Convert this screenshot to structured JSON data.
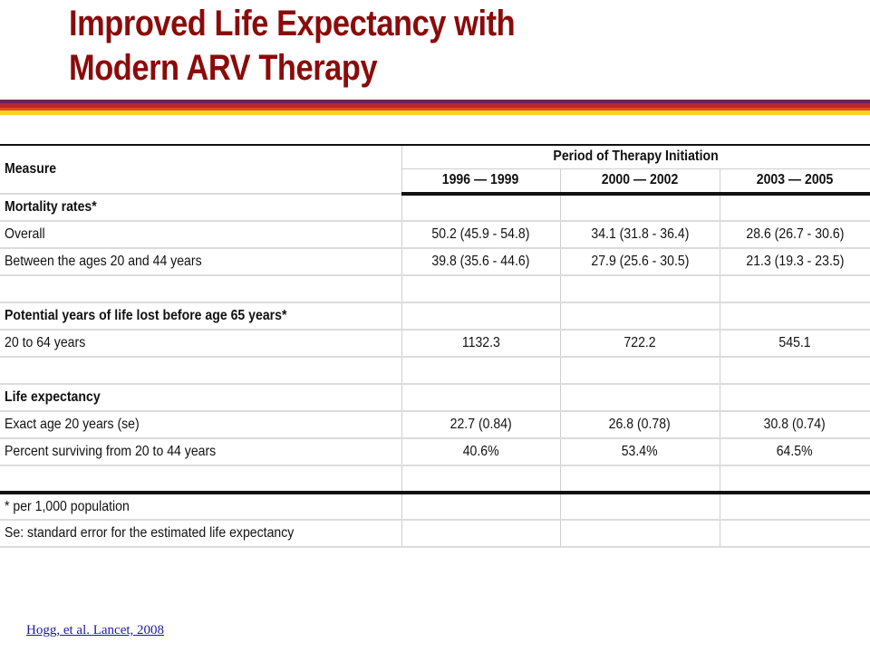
{
  "title": {
    "line1": "Improved Life Expectancy with",
    "line2": "Modern ARV Therapy"
  },
  "table": {
    "measure_header": "Measure",
    "period_header": "Period of Therapy Initiation",
    "periods": [
      "1996 — 1999",
      "2000 — 2002",
      "2003 — 2005"
    ],
    "rows": [
      {
        "label": "Mortality rates*",
        "section": true,
        "values": [
          "",
          "",
          ""
        ]
      },
      {
        "label": "Overall",
        "section": false,
        "values": [
          "50.2 (45.9 - 54.8)",
          "34.1 (31.8 - 36.4)",
          "28.6 (26.7 - 30.6)"
        ]
      },
      {
        "label": "Between the ages 20 and 44 years",
        "section": false,
        "values": [
          "39.8 (35.6 - 44.6)",
          "27.9 (25.6 - 30.5)",
          "21.3 (19.3 - 23.5)"
        ]
      },
      {
        "label": "",
        "section": false,
        "values": [
          "",
          "",
          ""
        ]
      },
      {
        "label": "Potential years of life lost before age 65 years*",
        "section": true,
        "values": [
          "",
          "",
          ""
        ]
      },
      {
        "label": "20 to 64 years",
        "section": false,
        "values": [
          "1132.3",
          "722.2",
          "545.1"
        ]
      },
      {
        "label": "",
        "section": false,
        "values": [
          "",
          "",
          ""
        ]
      },
      {
        "label": "Life expectancy",
        "section": true,
        "values": [
          "",
          "",
          ""
        ]
      },
      {
        "label": "Exact age 20 years (se)",
        "section": false,
        "values": [
          "22.7 (0.84)",
          "26.8 (0.78)",
          "30.8 (0.74)"
        ]
      },
      {
        "label": "Percent surviving from 20 to 44 years",
        "section": false,
        "values": [
          "40.6%",
          "53.4%",
          "64.5%"
        ]
      },
      {
        "label": "",
        "section": false,
        "values": [
          "",
          "",
          ""
        ]
      }
    ],
    "footnotes": [
      "* per 1,000 population",
      "Se: standard error for the estimated life expectancy"
    ]
  },
  "citation": "Hogg, et al. Lancet, 2008",
  "colors": {
    "title": "#8b0a0a",
    "stripe_purple": "#6a2458",
    "stripe_red": "#b8282e",
    "stripe_orange": "#e04a2a",
    "stripe_yellow": "#f6d418",
    "citation_link": "#1a1aa6"
  }
}
